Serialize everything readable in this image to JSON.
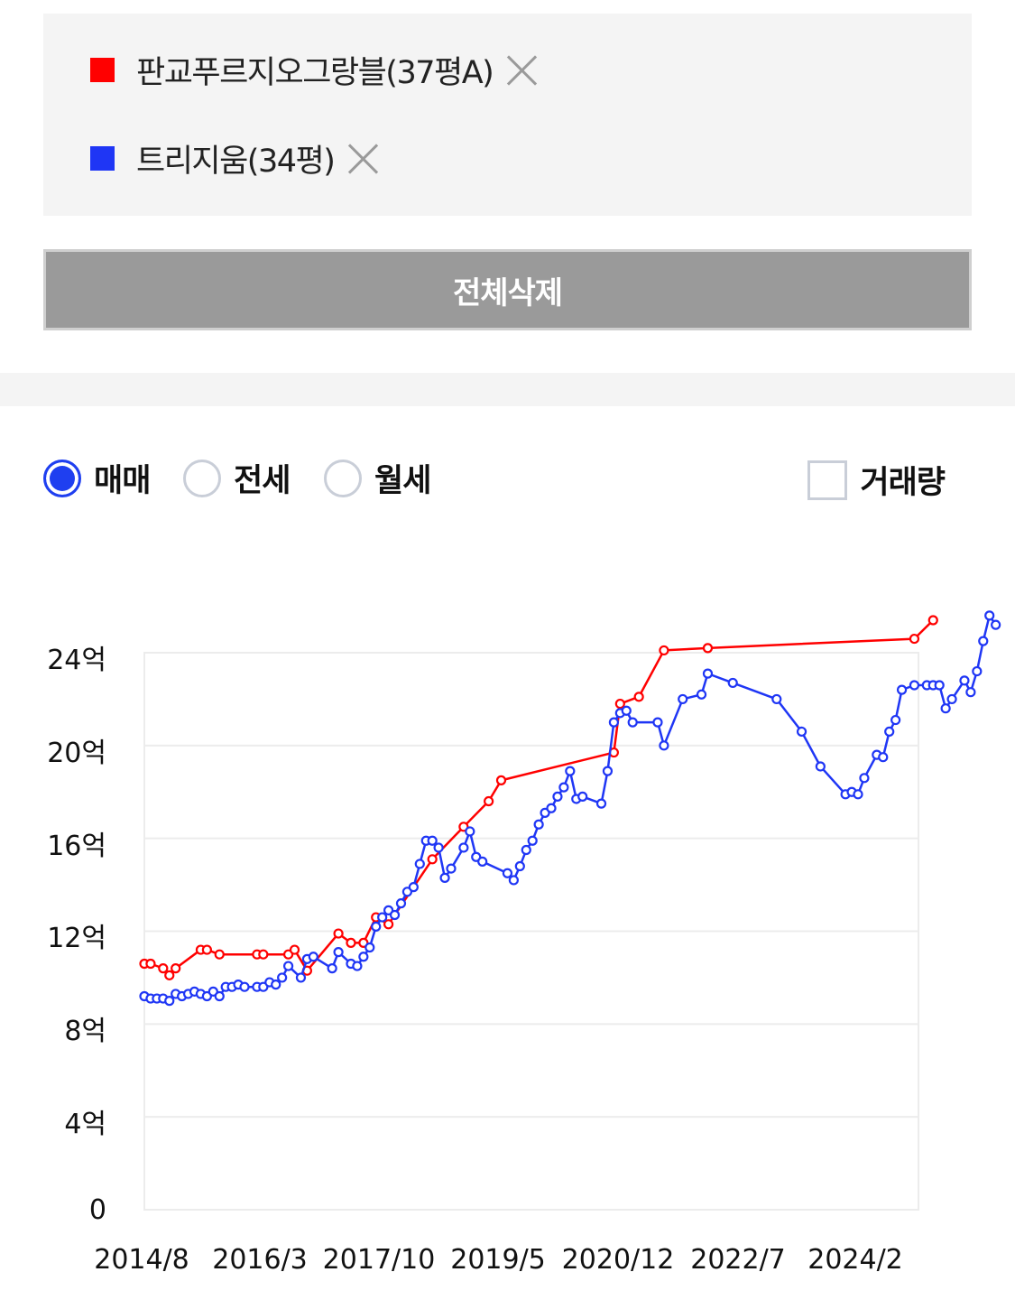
{
  "legend": {
    "items": [
      {
        "label": "판교푸르지오그랑블(37평A)",
        "color": "#ff0000"
      },
      {
        "label": "트리지움(34평)",
        "color": "#1f36f5"
      }
    ]
  },
  "actions": {
    "delete_all_label": "전체삭제"
  },
  "controls": {
    "radios": [
      {
        "label": "매매",
        "checked": true
      },
      {
        "label": "전세",
        "checked": false
      },
      {
        "label": "월세",
        "checked": false
      }
    ],
    "volume_checkbox": {
      "label": "거래량",
      "checked": false
    }
  },
  "chart_data": {
    "type": "line",
    "title": "",
    "xlabel": "",
    "ylabel": "",
    "ylim": [
      0,
      24
    ],
    "y_unit": "억",
    "grid": true,
    "y_ticks": [
      "0",
      "4억",
      "8억",
      "12억",
      "16억",
      "20억",
      "24억"
    ],
    "x_ticks": [
      "2014/8",
      "2016/3",
      "2017/10",
      "2019/5",
      "2020/12",
      "2022/7",
      "2024/2"
    ],
    "x_range": [
      "2014/8",
      "2025/3"
    ],
    "series": [
      {
        "name": "판교푸르지오그랑블(37평A)",
        "color": "#ff0000",
        "x": [
          "2014/8",
          "2014/9",
          "2014/11",
          "2014/12",
          "2015/1",
          "2015/5",
          "2015/6",
          "2015/8",
          "2016/2",
          "2016/3",
          "2016/7",
          "2016/8",
          "2016/10",
          "2017/3",
          "2017/5",
          "2017/7",
          "2017/9",
          "2017/11",
          "2018/6",
          "2018/11",
          "2019/3",
          "2019/5",
          "2020/11",
          "2020/12",
          "2021/3",
          "2021/7",
          "2022/2",
          "2024/11",
          "2025/2"
        ],
        "values": [
          10.6,
          10.6,
          10.4,
          10.1,
          10.4,
          11.2,
          11.2,
          11.0,
          11.0,
          11.0,
          11.0,
          11.2,
          10.3,
          11.9,
          11.5,
          11.5,
          12.6,
          12.3,
          15.1,
          16.5,
          17.6,
          18.5,
          19.7,
          21.8,
          22.1,
          24.1,
          24.2,
          24.6,
          25.4
        ]
      },
      {
        "name": "트리지움(34평)",
        "color": "#1f36f5",
        "x": [
          "2014/8",
          "2014/9",
          "2014/10",
          "2014/11",
          "2014/12",
          "2015/1",
          "2015/2",
          "2015/3",
          "2015/4",
          "2015/5",
          "2015/6",
          "2015/7",
          "2015/8",
          "2015/9",
          "2015/10",
          "2015/11",
          "2015/12",
          "2016/2",
          "2016/3",
          "2016/4",
          "2016/5",
          "2016/6",
          "2016/7",
          "2016/9",
          "2016/10",
          "2016/11",
          "2017/2",
          "2017/3",
          "2017/5",
          "2017/6",
          "2017/7",
          "2017/8",
          "2017/9",
          "2017/10",
          "2017/11",
          "2017/12",
          "2018/1",
          "2018/2",
          "2018/3",
          "2018/4",
          "2018/5",
          "2018/6",
          "2018/7",
          "2018/8",
          "2018/9",
          "2018/11",
          "2018/12",
          "2019/1",
          "2019/2",
          "2019/6",
          "2019/7",
          "2019/8",
          "2019/9",
          "2019/10",
          "2019/11",
          "2019/12",
          "2020/1",
          "2020/2",
          "2020/3",
          "2020/4",
          "2020/5",
          "2020/6",
          "2020/9",
          "2020/10",
          "2020/11",
          "2020/12",
          "2021/1",
          "2021/2",
          "2021/6",
          "2021/7",
          "2021/10",
          "2022/1",
          "2022/2",
          "2022/6",
          "2023/1",
          "2023/5",
          "2023/8",
          "2023/12",
          "2024/1",
          "2024/2",
          "2024/3",
          "2024/5",
          "2024/6",
          "2024/7",
          "2024/8",
          "2024/9",
          "2024/11",
          "2025/1",
          "2025/2",
          "2025/3",
          "2025/4",
          "2025/5",
          "2025/7",
          "2025/8",
          "2025/9",
          "2025/10",
          "2025/11",
          "2025/12"
        ],
        "values": [
          9.2,
          9.1,
          9.1,
          9.1,
          9.0,
          9.3,
          9.2,
          9.3,
          9.4,
          9.3,
          9.2,
          9.4,
          9.2,
          9.6,
          9.6,
          9.7,
          9.6,
          9.6,
          9.6,
          9.8,
          9.7,
          10.0,
          10.5,
          10.0,
          10.8,
          10.9,
          10.4,
          11.1,
          10.6,
          10.5,
          10.9,
          11.3,
          12.2,
          12.6,
          12.9,
          12.7,
          13.2,
          13.7,
          13.9,
          14.9,
          15.9,
          15.9,
          15.6,
          14.3,
          14.7,
          15.6,
          16.3,
          15.2,
          15.0,
          14.5,
          14.2,
          14.8,
          15.5,
          15.9,
          16.6,
          17.1,
          17.3,
          17.8,
          18.2,
          18.9,
          17.7,
          17.8,
          17.5,
          18.9,
          21.0,
          21.4,
          21.5,
          21.0,
          21.0,
          20.0,
          22.0,
          22.2,
          23.1,
          22.7,
          22.0,
          20.6,
          19.1,
          17.9,
          18.0,
          17.9,
          18.6,
          19.6,
          19.5,
          20.6,
          21.1,
          22.4,
          22.6,
          22.6,
          22.6,
          22.6,
          21.6,
          22.0,
          22.8,
          22.3,
          23.2,
          24.5,
          25.6,
          25.2
        ]
      }
    ]
  }
}
